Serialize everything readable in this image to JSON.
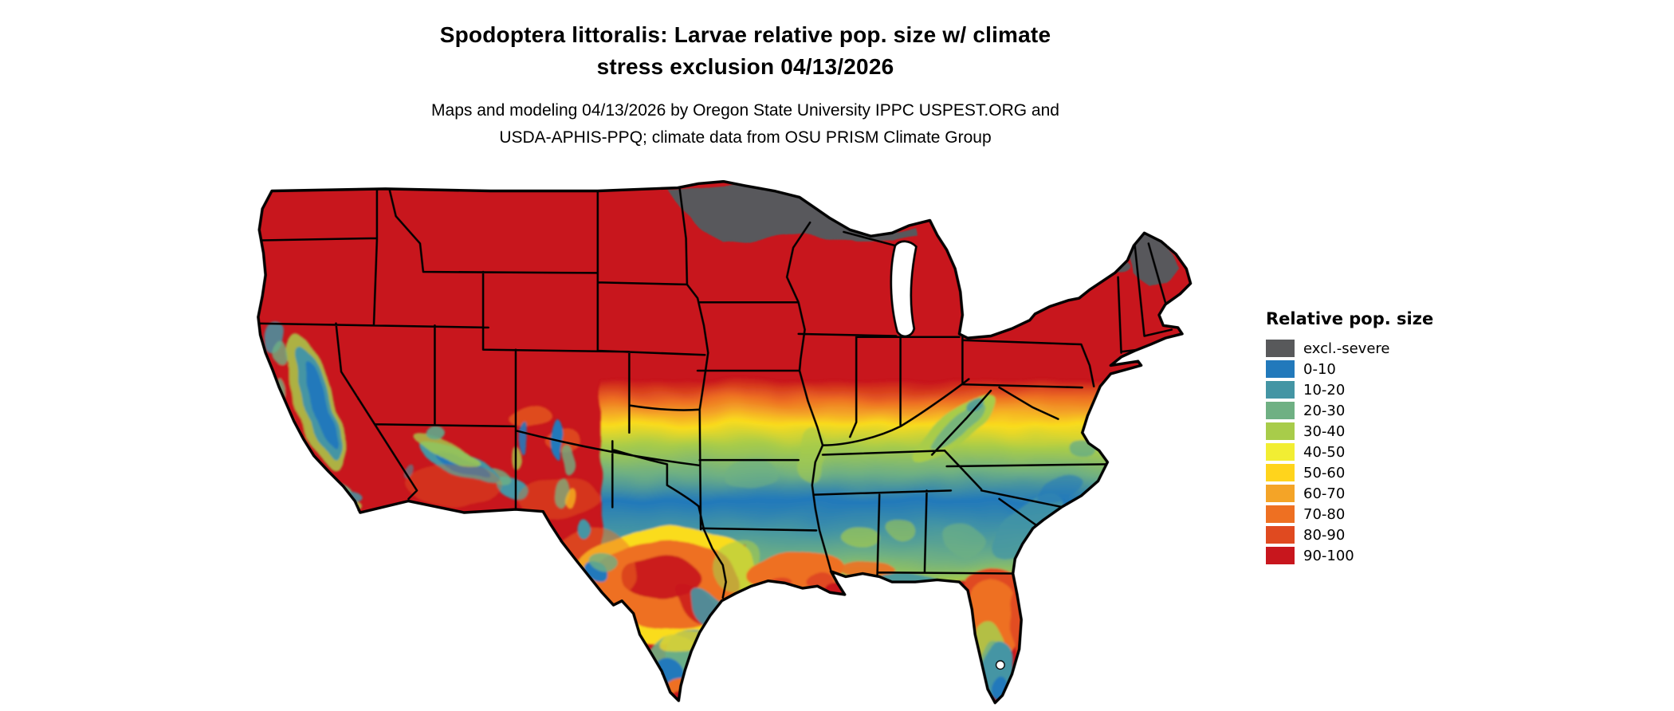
{
  "title": {
    "line1": "Spodoptera littoralis: Larvae relative pop. size w/ climate",
    "line2": "stress exclusion 04/13/2026"
  },
  "subtitle": {
    "line1": "Maps and modeling 04/13/2026 by Oregon State University IPPC USPEST.ORG and",
    "line2": "USDA-APHIS-PPQ; climate data from OSU PRISM Climate Group"
  },
  "map": {
    "region": "Contiguous United States",
    "kind": "raster pest-risk map with state boundaries"
  },
  "legend": {
    "title": "Relative pop. size",
    "items": [
      {
        "label": "excl.-severe",
        "color": "#58595b"
      },
      {
        "label": "0-10",
        "color": "#2279bb"
      },
      {
        "label": "10-20",
        "color": "#4495a4"
      },
      {
        "label": "20-30",
        "color": "#6fb083"
      },
      {
        "label": "30-40",
        "color": "#a8cc4a"
      },
      {
        "label": "40-50",
        "color": "#f2ee33"
      },
      {
        "label": "50-60",
        "color": "#ffd41c"
      },
      {
        "label": "60-70",
        "color": "#f4a427"
      },
      {
        "label": "70-80",
        "color": "#ee7022"
      },
      {
        "label": "80-90",
        "color": "#e04a20"
      },
      {
        "label": "90-100",
        "color": "#c8161d"
      }
    ]
  }
}
